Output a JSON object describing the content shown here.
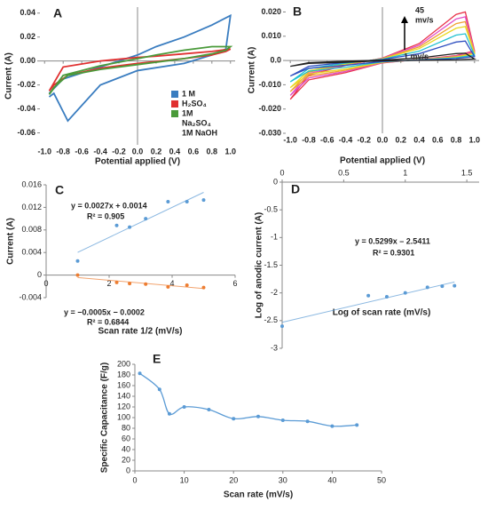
{
  "chart_data": [
    {
      "type": "line",
      "panel": "A",
      "xlabel": "Potential applied (V)",
      "ylabel": "Current (A)",
      "xlim": [
        -1.05,
        1.05
      ],
      "ylim": [
        -0.07,
        0.045
      ],
      "xticks": [
        {
          "value": -1,
          "label": "-1.0"
        },
        -0.8,
        -0.6,
        -0.4,
        -0.2,
        {
          "value": 0,
          "label": "0.0"
        },
        0.2,
        0.4,
        0.6,
        0.8,
        {
          "value": 1,
          "label": "1.0"
        }
      ],
      "yticks": [
        0.04,
        0.02,
        {
          "value": 0,
          "label": "0.00"
        },
        -0.02,
        -0.04,
        -0.06
      ],
      "x": [
        -0.95,
        -0.9,
        -0.75,
        -0.4,
        0,
        0.5,
        0.8,
        0.95,
        1.0,
        0.8,
        0.5,
        0.2,
        0,
        -0.4,
        -0.8,
        -0.95
      ],
      "series": [
        {
          "name": "1 M",
          "color": "#3a7dc0",
          "values": [
            -0.03,
            -0.027,
            -0.05,
            -0.02,
            -0.008,
            -0.002,
            0.005,
            0.01,
            0.038,
            0.03,
            0.02,
            0.012,
            0.005,
            -0.005,
            -0.015,
            -0.027
          ]
        },
        {
          "name": "H₂SO₄",
          "color": "#e03030",
          "values": [
            -0.025,
            -0.02,
            -0.012,
            -0.006,
            -0.002,
            0.002,
            0.005,
            0.008,
            0.01,
            0.008,
            0.006,
            0.004,
            0.003,
            0,
            -0.005,
            -0.025
          ]
        },
        {
          "name": "1M",
          "color": "#4a9a3a",
          "values": [
            -0.028,
            -0.022,
            -0.012,
            -0.007,
            -0.003,
            0.002,
            0.006,
            0.009,
            0.012,
            0.012,
            0.009,
            0.005,
            0.002,
            -0.004,
            -0.012,
            -0.028
          ]
        }
      ],
      "legend_notes": [
        "Na₂SO₄",
        "1M NaOH"
      ]
    },
    {
      "type": "line",
      "panel": "B",
      "xlabel": "Potential applied (V)",
      "ylabel": "Current (A)",
      "xlim": [
        -1.05,
        1.05
      ],
      "ylim": [
        -0.03,
        0.022
      ],
      "xticks": [
        {
          "value": -1,
          "label": "-1.0"
        },
        -0.8,
        -0.6,
        -0.4,
        -0.2,
        {
          "value": 0,
          "label": "0.0"
        },
        0.2,
        0.4,
        0.6,
        0.8,
        {
          "value": 1,
          "label": "1.0"
        }
      ],
      "yticks": [
        {
          "value": 0.02,
          "label": "0.020"
        },
        {
          "value": 0.01,
          "label": "0.010"
        },
        {
          "value": 0,
          "label": "0.0"
        },
        {
          "value": -0.01,
          "label": "-0.010"
        },
        {
          "value": -0.02,
          "label": "-0.020"
        },
        {
          "value": -0.03,
          "label": "-0.030"
        }
      ],
      "annotations": [
        "45",
        "mv/s",
        "1 mv/s"
      ],
      "x": [
        -1,
        -0.8,
        -0.4,
        0,
        0.4,
        0.6,
        0.8,
        0.9,
        1.0,
        0.8,
        0.4,
        0,
        -0.4,
        -0.8,
        -1
      ],
      "series": [
        {
          "color": "#e8334a",
          "values": [
            -0.016,
            -0.006,
            -0.002,
            0.001,
            0.007,
            0.013,
            0.019,
            0.02,
            0.004,
            0.002,
            0.0005,
            -0.001,
            -0.005,
            -0.008,
            -0.016
          ]
        },
        {
          "color": "#e04fc8",
          "values": [
            -0.0144,
            -0.0054,
            -0.0018,
            0.0009,
            0.0063,
            0.0117,
            0.0171,
            0.018,
            0.0036,
            0.0018,
            0.00045,
            -0.0009,
            -0.0045,
            -0.0072,
            -0.0144
          ]
        },
        {
          "color": "#f0a030",
          "values": [
            -0.0128,
            -0.0048,
            -0.0016,
            0.0008,
            0.0056,
            0.0104,
            0.0152,
            0.016,
            0.0032,
            0.0016,
            0.0004,
            -0.0008,
            -0.004,
            -0.0064,
            -0.0128
          ]
        },
        {
          "color": "#e8d820",
          "values": [
            -0.0112,
            -0.0042,
            -0.0014,
            0.0007,
            0.0049,
            0.0091,
            0.0133,
            0.014,
            0.0028,
            0.0014,
            0.00035,
            -0.0007,
            -0.0035,
            -0.0056,
            -0.0112
          ]
        },
        {
          "color": "#20c0d0",
          "values": [
            -0.0088,
            -0.0033,
            -0.0011,
            0.00055,
            0.00385,
            0.00715,
            0.01045,
            0.011,
            0.0022,
            0.0011,
            0.000275,
            -0.00055,
            -0.00275,
            -0.0044,
            -0.0088
          ]
        },
        {
          "color": "#3050c0",
          "values": [
            -0.0064,
            -0.0024,
            -0.0008,
            0.0004,
            0.0028,
            0.0052,
            0.0076,
            0.008,
            0.0016,
            0.0008,
            0.0002,
            -0.0004,
            -0.002,
            -0.0032,
            -0.0064
          ]
        },
        {
          "color": "#222222",
          "values": [
            -0.0024,
            -0.0009,
            -0.0003,
            0.00015,
            0.00105,
            0.00195,
            0.00285,
            0.003,
            0.0006,
            0.0003,
            7.5e-05,
            -0.00015,
            -0.00075,
            -0.0012,
            -0.0024
          ]
        }
      ]
    },
    {
      "type": "scatter",
      "panel": "C",
      "xlabel": "Scan rate 1/2 (mV/s)",
      "ylabel": "Current (A)",
      "xlim": [
        0,
        6
      ],
      "ylim": [
        -0.004,
        0.016
      ],
      "xticks": [
        0,
        2,
        4,
        6
      ],
      "yticks": [
        -0.004,
        0,
        0.004,
        0.008,
        0.012,
        0.016
      ],
      "trendline": true,
      "annotations": [
        "y = 0.0027x + 0.0014",
        "R² = 0.905",
        "y = −0.0005x − 0.0002",
        "R² = 0.6844"
      ],
      "series": [
        {
          "color": "#5b9bd5",
          "x": [
            1,
            2.24,
            2.65,
            3.16,
            3.87,
            4.47,
            5
          ],
          "values": [
            0.0025,
            0.0088,
            0.0085,
            0.01,
            0.013,
            0.013,
            0.0133
          ]
        },
        {
          "color": "#ed7d31",
          "x": [
            1,
            2.24,
            2.65,
            3.16,
            3.87,
            4.47,
            5
          ],
          "values": [
            0,
            -0.0013,
            -0.0015,
            -0.0016,
            -0.0021,
            -0.0018,
            -0.0022
          ]
        }
      ]
    },
    {
      "type": "scatter",
      "panel": "D",
      "xlabel": "Log of scan rate (mV/s)",
      "ylabel": "Log of anodic current (A)",
      "xlim": [
        0,
        1.6
      ],
      "ylim": [
        -3,
        0
      ],
      "xticks": [
        0,
        0.5,
        1,
        1.5
      ],
      "yticks": [
        0,
        -0.5,
        -1,
        -1.5,
        -2,
        -2.5,
        -3
      ],
      "trendline": true,
      "annotations": [
        "y = 0.5299x – 2.5411",
        "R² = 0.9301"
      ],
      "series": [
        {
          "color": "#5b9bd5",
          "x": [
            0,
            0.7,
            0.85,
            1,
            1.18,
            1.3,
            1.4
          ],
          "values": [
            -2.6,
            -2.05,
            -2.07,
            -2.0,
            -1.9,
            -1.88,
            -1.87
          ]
        }
      ]
    },
    {
      "type": "line",
      "panel": "E",
      "xlabel": "Scan rate (mV/s)",
      "ylabel": "Specific Capacitance (F/g)",
      "xlim": [
        0,
        50
      ],
      "ylim": [
        0,
        200
      ],
      "xticks": [
        0,
        10,
        20,
        30,
        40,
        50
      ],
      "yticks": [
        0,
        20,
        40,
        60,
        80,
        100,
        120,
        140,
        160,
        180,
        200
      ],
      "markers": true,
      "smooth": true,
      "x": [
        1,
        5,
        7,
        10,
        15,
        20,
        25,
        30,
        35,
        40,
        45
      ],
      "series": [
        {
          "color": "#5b9bd5",
          "values": [
            183,
            153,
            107,
            120,
            115,
            98,
            102,
            95,
            93,
            84,
            86
          ]
        }
      ]
    }
  ]
}
